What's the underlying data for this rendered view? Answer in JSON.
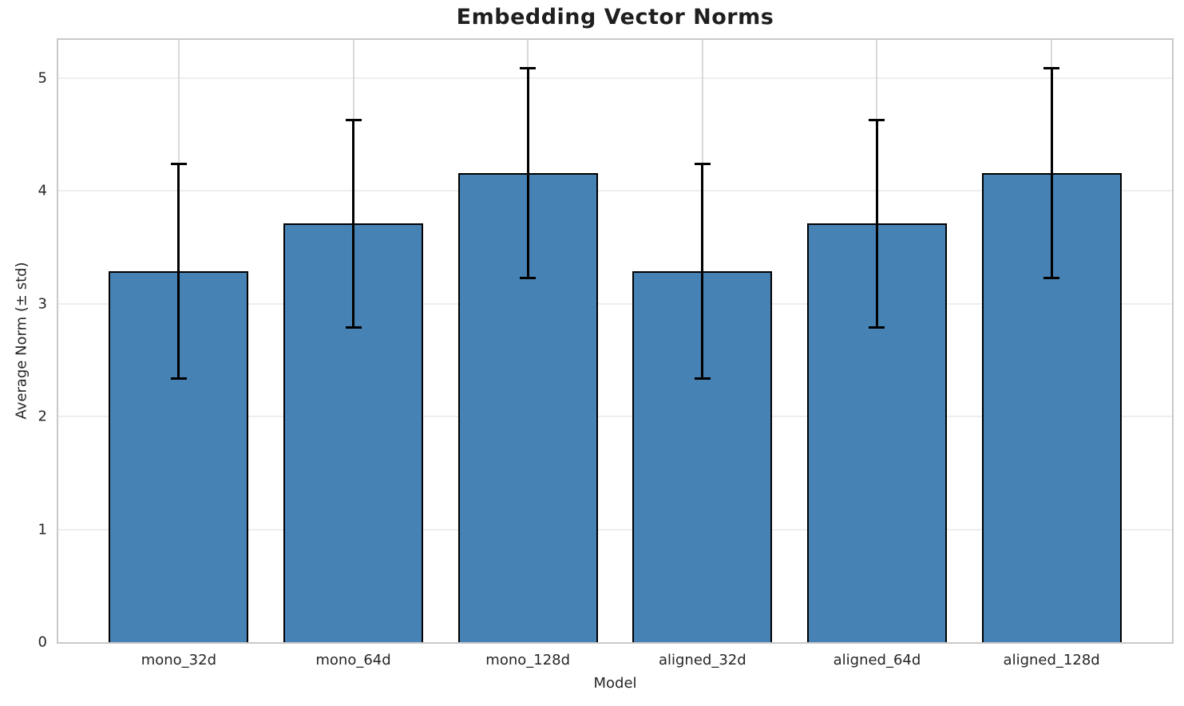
{
  "chart_data": {
    "type": "bar",
    "title": "Embedding Vector Norms",
    "xlabel": "Model",
    "ylabel": "Average Norm (± std)",
    "categories": [
      "mono_32d",
      "mono_64d",
      "mono_128d",
      "aligned_32d",
      "aligned_64d",
      "aligned_128d"
    ],
    "values": [
      3.29,
      3.71,
      4.16,
      3.29,
      3.71,
      4.16
    ],
    "errors": [
      0.95,
      0.92,
      0.93,
      0.95,
      0.92,
      0.93
    ],
    "error_style": "plus-minus-std-with-caps",
    "yticks": [
      0,
      1,
      2,
      3,
      4,
      5
    ],
    "ylim": [
      0,
      5.34
    ],
    "xlim": [
      -0.69,
      5.69
    ],
    "bar_width_data_units": 0.8,
    "grid": true,
    "legend_position": "none",
    "bar_color": "#4682b4",
    "bar_edge_color": "#000000",
    "error_color": "#000000",
    "hgrid_color": "#eeeeee",
    "vgrid_color": "#d9d9d9",
    "spine_color": "#c9c9c9",
    "text_color": "#262626",
    "title_color": "#1f1f1f"
  }
}
